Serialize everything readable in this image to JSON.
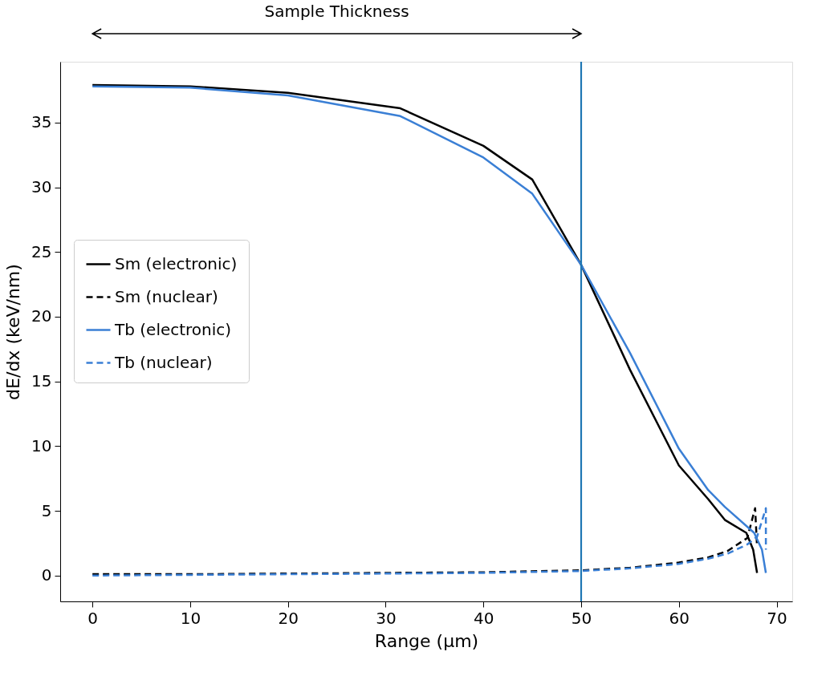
{
  "chart_data": {
    "type": "line",
    "xlabel": "Range (μm)",
    "ylabel": "dE/dx (keV/nm)",
    "annotations": [
      "Sample Thickness"
    ],
    "xlim": [
      -3.3,
      71.6
    ],
    "ylim": [
      -2,
      39.7
    ],
    "xticks": [
      0,
      10,
      20,
      30,
      40,
      50,
      60,
      70
    ],
    "yticks": [
      0,
      5,
      10,
      15,
      20,
      25,
      30,
      35
    ],
    "grid": false,
    "legend": "left",
    "marker": "none",
    "ref_lines": [
      {
        "axis": "x",
        "value": 50,
        "color": "#1f77b4",
        "line_style": "solid"
      }
    ],
    "series": [
      {
        "name": "Sm (electronic)",
        "color": "#000000",
        "line_style": "solid",
        "x": [
          0,
          10,
          20,
          31.5,
          40,
          45,
          50,
          55,
          60,
          63,
          64.7,
          66.9,
          67.6,
          68.0
        ],
        "values": [
          37.9,
          37.8,
          37.3,
          36.1,
          33.2,
          30.6,
          24.0,
          15.9,
          8.5,
          5.9,
          4.3,
          3.3,
          2.0,
          0.2
        ]
      },
      {
        "name": "Sm (nuclear)",
        "color": "#000000",
        "line_style": "dashed",
        "x": [
          0,
          10,
          20,
          30,
          40,
          50,
          55,
          60,
          63,
          65,
          67,
          67.8,
          68.0
        ],
        "values": [
          0.1,
          0.1,
          0.15,
          0.2,
          0.25,
          0.4,
          0.6,
          1.0,
          1.4,
          1.9,
          2.9,
          5.2,
          2.2
        ]
      },
      {
        "name": "Tb (electronic)",
        "color": "#3a7fd5",
        "line_style": "solid",
        "x": [
          0,
          10,
          20,
          31.5,
          40,
          45,
          50,
          55,
          60,
          63,
          64.7,
          67.7,
          68.5,
          68.9
        ],
        "values": [
          37.8,
          37.7,
          37.1,
          35.5,
          32.3,
          29.5,
          24.0,
          17.2,
          9.8,
          6.6,
          5.3,
          3.3,
          2.0,
          0.2
        ]
      },
      {
        "name": "Tb (nuclear)",
        "color": "#3a7fd5",
        "line_style": "dashed",
        "x": [
          0,
          10,
          20,
          30,
          40,
          50,
          55,
          60,
          63,
          65,
          67,
          68.0,
          68.9,
          68.9
        ],
        "values": [
          0.0,
          0.05,
          0.1,
          0.15,
          0.2,
          0.35,
          0.55,
          0.9,
          1.3,
          1.7,
          2.4,
          3.0,
          5.2,
          2.0
        ]
      }
    ]
  }
}
